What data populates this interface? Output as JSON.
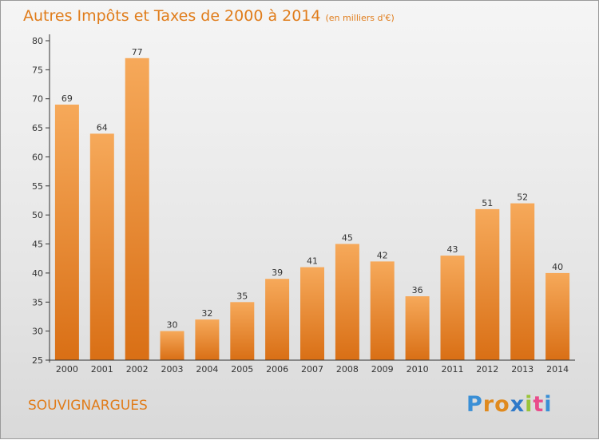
{
  "header": {
    "title": "Autres Impôts et Taxes de 2000 à 2014",
    "subtitle": "(en milliers d'€)"
  },
  "footer": {
    "place": "SOUVIGNARGUES",
    "logo": {
      "letters": [
        "P",
        "r",
        "o",
        "x",
        "i",
        "t",
        "i"
      ],
      "colors": [
        "#3a8fd6",
        "#e08a1e",
        "#e08a1e",
        "#2f79c9",
        "#9ac43a",
        "#e94c8b",
        "#3a8fd6"
      ]
    }
  },
  "colors": {
    "accent": "#e07c1a",
    "bar_light": "#f6a95a",
    "bar_dark": "#d96f15",
    "axis": "#333333"
  },
  "chart_data": {
    "type": "bar",
    "title": "Autres Impôts et Taxes de 2000 à 2014",
    "subtitle": "(en milliers d'€)",
    "xlabel": "",
    "ylabel": "",
    "categories": [
      "2000",
      "2001",
      "2002",
      "2003",
      "2004",
      "2005",
      "2006",
      "2007",
      "2008",
      "2009",
      "2010",
      "2011",
      "2012",
      "2013",
      "2014"
    ],
    "values": [
      69,
      64,
      77,
      30,
      32,
      35,
      39,
      41,
      45,
      42,
      36,
      43,
      51,
      52,
      40
    ],
    "ylim": [
      25,
      80
    ],
    "yticks": [
      25,
      30,
      35,
      40,
      45,
      50,
      55,
      60,
      65,
      70,
      75,
      80
    ],
    "grid": false,
    "data_labels": true
  }
}
